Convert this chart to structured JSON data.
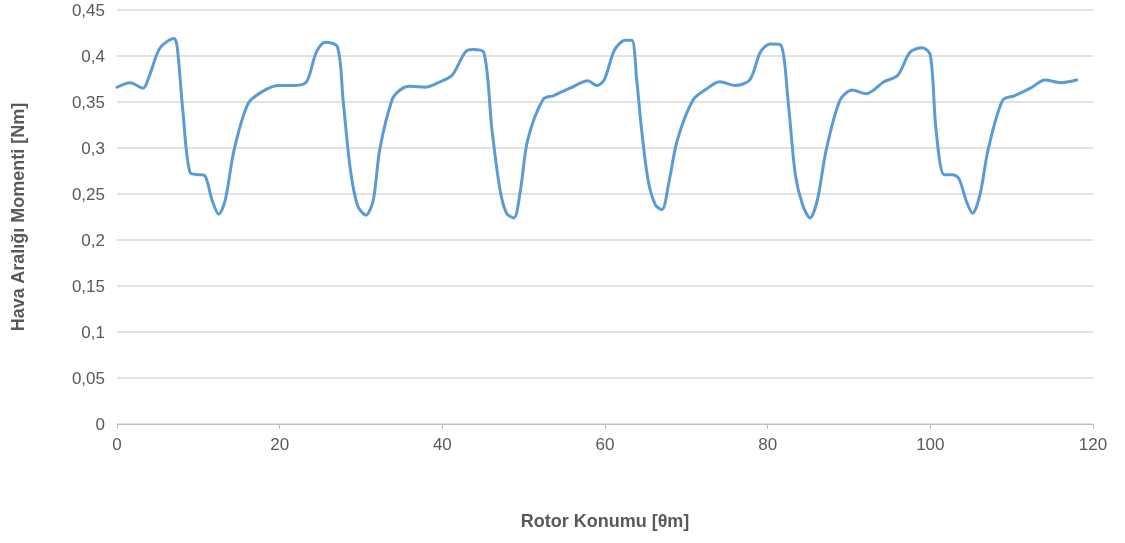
{
  "chart_data": {
    "type": "line",
    "xlabel": "Rotor Konumu [θm]",
    "ylabel": "Hava Aralığı Momenti [Nm]",
    "xlim": [
      0,
      120
    ],
    "xticks": [
      0,
      20,
      40,
      60,
      80,
      100,
      120
    ],
    "ylim": [
      0,
      0.45
    ],
    "yticks": [
      0,
      {
        "value": 0.05,
        "label": "0,05"
      },
      {
        "value": 0.1,
        "label": "0,1"
      },
      {
        "value": 0.15,
        "label": "0,15"
      },
      {
        "value": 0.2,
        "label": "0,2"
      },
      {
        "value": 0.25,
        "label": "0,25"
      },
      {
        "value": 0.3,
        "label": "0,3"
      },
      {
        "value": 0.35,
        "label": "0,35"
      },
      {
        "value": 0.4,
        "label": "0,4"
      },
      {
        "value": 0.45,
        "label": "0,45"
      }
    ],
    "grid": "y",
    "marker": "none",
    "line_style": "solid",
    "series": [
      {
        "color": "#5b9bd5",
        "x": [
          0,
          1.6,
          3.2,
          4,
          5.3,
          7.0,
          7.4,
          8.1,
          9.0,
          10.1,
          10.8,
          11.7,
          12.5,
          13.3,
          14.4,
          16.1,
          17.8,
          19.8,
          21.9,
          23.3,
          24.5,
          25.6,
          27.1,
          27.8,
          28.7,
          29.6,
          30.6,
          31.5,
          32.3,
          33.8,
          34.8,
          36,
          37.9,
          39.7,
          41.2,
          42.8,
          43.7,
          45.1,
          46.1,
          47.1,
          47.9,
          48.8,
          49.6,
          50.5,
          52.4,
          53.7,
          55.7,
          57.9,
          59.0,
          59.9,
          61.2,
          62.5,
          63.3,
          63.9,
          64.5,
          65.3,
          66.2,
          67.0,
          67.9,
          68.9,
          70.8,
          72.3,
          74.1,
          76,
          77.8,
          79.1,
          80.3,
          81.6,
          82.5,
          83.4,
          84.3,
          85.2,
          86.1,
          87.2,
          88.9,
          90.4,
          92.1,
          94.3,
          96.0,
          97.5,
          99.0,
          100,
          100.7,
          101.7,
          102.7,
          103.5,
          104.4,
          105.2,
          106.1,
          107.1,
          108.9,
          110.4,
          112.3,
          114.1,
          116,
          118
        ],
        "values": [
          0.366,
          0.371,
          0.365,
          0.379,
          0.409,
          0.419,
          0.41,
          0.34,
          0.273,
          0.271,
          0.27,
          0.243,
          0.228,
          0.243,
          0.298,
          0.348,
          0.361,
          0.368,
          0.368,
          0.372,
          0.404,
          0.415,
          0.41,
          0.352,
          0.276,
          0.237,
          0.227,
          0.243,
          0.298,
          0.352,
          0.363,
          0.367,
          0.366,
          0.372,
          0.379,
          0.404,
          0.407,
          0.404,
          0.32,
          0.254,
          0.229,
          0.224,
          0.254,
          0.309,
          0.353,
          0.357,
          0.365,
          0.373,
          0.368,
          0.374,
          0.407,
          0.417,
          0.417,
          0.374,
          0.32,
          0.265,
          0.238,
          0.233,
          0.265,
          0.309,
          0.352,
          0.363,
          0.372,
          0.368,
          0.374,
          0.404,
          0.413,
          0.412,
          0.352,
          0.271,
          0.238,
          0.224,
          0.243,
          0.298,
          0.352,
          0.363,
          0.359,
          0.372,
          0.379,
          0.404,
          0.409,
          0.401,
          0.32,
          0.271,
          0.271,
          0.267,
          0.243,
          0.229,
          0.249,
          0.298,
          0.352,
          0.357,
          0.365,
          0.374,
          0.371,
          0.374
        ]
      }
    ]
  }
}
